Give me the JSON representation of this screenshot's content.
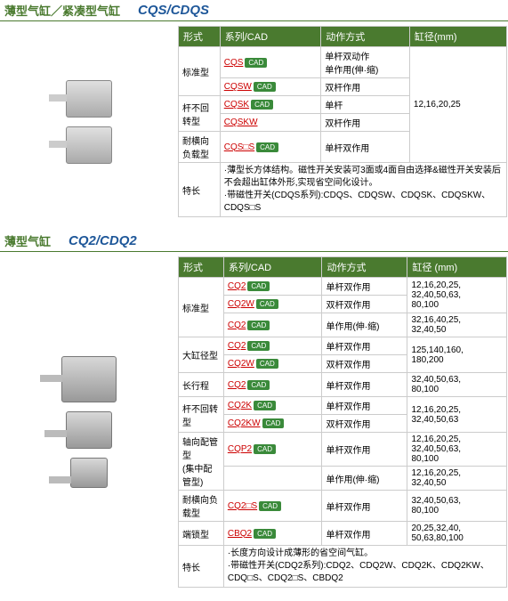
{
  "s1": {
    "title_cn": "薄型气缸／紧凑型气缸",
    "title_en": "CQS/CDQS",
    "headers": [
      "形式",
      "系列/CAD",
      "动作方式",
      "缸径(mm)"
    ],
    "bore": "12,16,20,25",
    "rows": [
      {
        "form": "标准型",
        "series": "CQS",
        "cad": true,
        "action": "单杆双动作\n单作用(伸·缩)",
        "rs": 2
      },
      {
        "form": "",
        "series": "CQSW",
        "cad": true,
        "action": "双杆作用"
      },
      {
        "form": "杆不回转型",
        "series": "CQSK",
        "cad": true,
        "action": "单杆"
      },
      {
        "form": "",
        "series": "CQSKW",
        "cad": false,
        "action": "双杆作用"
      },
      {
        "form": "耐横向负载型",
        "series": "CQS□S",
        "cad": true,
        "action": "单杆双作用"
      }
    ],
    "feature_label": "特长",
    "features": "·薄型长方体结构。磁性开关安装可3面或4面自由选择&磁性开关安装后不会超出缸体外形,实现省空间化设计。\n·带磁性开关(CDQS系列):CDQS、CDQSW、CDQSK、CDQSKW、CDQS□S"
  },
  "s2": {
    "title_cn": "薄型气缸",
    "title_en": "CQ2/CDQ2",
    "headers": [
      "形式",
      "系列/CAD",
      "动作方式",
      "缸径 (mm)"
    ],
    "rows": [
      {
        "form": "标准型",
        "series": "CQ2",
        "cad": true,
        "action": "单杆双作用",
        "bore": "12,16,20,25,\n32,40,50,63,\n80,100"
      },
      {
        "form": "",
        "series": "CQ2W",
        "cad": true,
        "action": "双杆双作用",
        "bore": ""
      },
      {
        "form": "",
        "series": "CQ2",
        "cad": true,
        "action": "单作用(伸·缩)",
        "bore": "32,16,40,25,\n32,40,50"
      },
      {
        "form": "大缸径型",
        "series": "CQ2",
        "cad": true,
        "action": "单杆双作用",
        "bore": "125,140,160,\n180,200"
      },
      {
        "form": "",
        "series": "CQ2W",
        "cad": true,
        "action": "双杆双作用",
        "bore": ""
      },
      {
        "form": "长行程",
        "series": "CQ2",
        "cad": true,
        "action": "单杆双作用",
        "bore": "32,40,50,63,\n80,100"
      },
      {
        "form": "杆不回转型",
        "series": "CQ2K",
        "cad": true,
        "action": "单杆双作用",
        "bore": "12,16,20,25,\n32,40,50,63"
      },
      {
        "form": "",
        "series": "CQ2KW",
        "cad": true,
        "action": "双杆双作用",
        "bore": ""
      },
      {
        "form": "轴向配管型\n(集中配管型)",
        "series": "CQP2",
        "cad": true,
        "action": "单杆双作用",
        "bore": "12,16,20,25,\n32,40,50,63,\n80,100"
      },
      {
        "form": "",
        "series": "",
        "cad": false,
        "action": "单作用(伸·缩)",
        "bore": "12,16,20,25,\n32,40,50"
      },
      {
        "form": "耐横向负载型",
        "series": "CQ2□S",
        "cad": true,
        "action": "单杆双作用",
        "bore": "32,40,50,63,\n80,100"
      },
      {
        "form": "端锁型",
        "series": "CBQ2",
        "cad": true,
        "action": "单杆双作用",
        "bore": "20,25,32,40,\n50,63,80,100"
      }
    ],
    "feature_label": "特长",
    "features": "·长度方向设计成薄形的省空间气缸。\n·带磁性开关(CDQ2系列):CDQ2、CDQ2W、CDQ2K、CDQ2KW、CDQ□S、CDQ2□S、CBDQ2"
  }
}
